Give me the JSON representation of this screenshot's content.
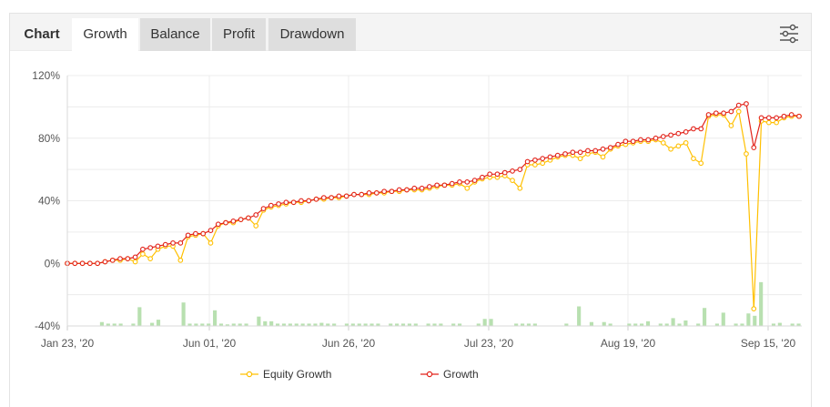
{
  "tabs": {
    "chart_label": "Chart",
    "items": [
      {
        "label": "Growth",
        "active": true
      },
      {
        "label": "Balance",
        "active": false
      },
      {
        "label": "Profit",
        "active": false
      },
      {
        "label": "Drawdown",
        "active": false
      }
    ],
    "settings_icon": "sliders-icon"
  },
  "colors": {
    "growth": "#e2231a",
    "equity": "#ffc000",
    "volume": "#b8e0b0",
    "grid": "#ececec",
    "tab_active": "#ffffff",
    "tab_inactive": "#dedede"
  },
  "chart_data": {
    "type": "line",
    "x_tick_labels": [
      "Jan 23, '20",
      "Jun 01, '20",
      "Jun 26, '20",
      "Jul 23, '20",
      "Aug 19, '20",
      "Sep 15, '20"
    ],
    "y_tick_labels": [
      "120%",
      "80%",
      "40%",
      "0%",
      "-40%"
    ],
    "y_ticks": [
      120,
      80,
      40,
      0,
      -40
    ],
    "ylim": [
      -40,
      120
    ],
    "grid": true,
    "legend_position": "bottom",
    "series": [
      {
        "name": "Equity Growth",
        "values": [
          0,
          0,
          0,
          0,
          0,
          1,
          2,
          2,
          3,
          1,
          6,
          3,
          9,
          11,
          11,
          2,
          17,
          18,
          19,
          13,
          24,
          26,
          26,
          28,
          29,
          24,
          34,
          36,
          37,
          38,
          39,
          39,
          40,
          41,
          41,
          42,
          42,
          43,
          44,
          44,
          44,
          45,
          45,
          46,
          46,
          47,
          47,
          47,
          48,
          49,
          50,
          50,
          51,
          48,
          52,
          54,
          55,
          55,
          56,
          53,
          48,
          63,
          63,
          64,
          66,
          68,
          69,
          69,
          67,
          70,
          71,
          68,
          73,
          75,
          76,
          77,
          78,
          78,
          79,
          77,
          73,
          75,
          77,
          67,
          64,
          94,
          95,
          95,
          88,
          97,
          70,
          -29,
          91,
          90,
          90,
          93,
          94,
          94
        ]
      },
      {
        "name": "Growth",
        "values": [
          0,
          0,
          0,
          0,
          0,
          1,
          2,
          3,
          3,
          4,
          9,
          10,
          11,
          12,
          13,
          13,
          18,
          19,
          19,
          21,
          25,
          26,
          27,
          28,
          29,
          31,
          35,
          37,
          38,
          39,
          39,
          40,
          40,
          41,
          42,
          42,
          43,
          43,
          44,
          44,
          45,
          45,
          46,
          46,
          47,
          47,
          48,
          48,
          49,
          50,
          50,
          51,
          52,
          52,
          53,
          55,
          57,
          57,
          58,
          59,
          60,
          65,
          66,
          67,
          68,
          69,
          70,
          71,
          71,
          72,
          72,
          73,
          74,
          76,
          78,
          78,
          79,
          79,
          80,
          81,
          82,
          83,
          84,
          86,
          86,
          95,
          96,
          96,
          97,
          101,
          102,
          74,
          93,
          93,
          93,
          94,
          95,
          94
        ]
      },
      {
        "name": "",
        "values": [
          0,
          0,
          0,
          0,
          0,
          2.5,
          1.5,
          1.5,
          1.5,
          0,
          1.5,
          12,
          0,
          2,
          4,
          0,
          0,
          0,
          15,
          1.5,
          1.5,
          1.5,
          1.5,
          10,
          1.5,
          1,
          1.5,
          1.5,
          1.5,
          0,
          6,
          3,
          3,
          1.5,
          1.5,
          1.5,
          1.5,
          1.5,
          1.5,
          1.5,
          2,
          1.5,
          1.5,
          0,
          1.5,
          1.5,
          1.5,
          1.5,
          1.5,
          1.5,
          0,
          1.5,
          1.5,
          1.5,
          1.5,
          1.5,
          0,
          1.5,
          1.5,
          1.5,
          0,
          1.5,
          1.5,
          0,
          0,
          1.5,
          4.5,
          4.5,
          0,
          0,
          0,
          1.5,
          1.5,
          1.5,
          1.5,
          0,
          0,
          0,
          0,
          1.5,
          0,
          12.5,
          0,
          2.5,
          0,
          2.5,
          1.5,
          0,
          0,
          1.5,
          1.5,
          1.5,
          3,
          0,
          1.5,
          1.5,
          5,
          1.5,
          3.5,
          0,
          1.5,
          11.5,
          0,
          1.5,
          8.5,
          0,
          1.5,
          1.5,
          8,
          6.5,
          28,
          0,
          1.5,
          2,
          0,
          1.5,
          1.5
        ]
      }
    ]
  },
  "legend": {
    "equity": "Equity Growth",
    "growth": "Growth"
  }
}
